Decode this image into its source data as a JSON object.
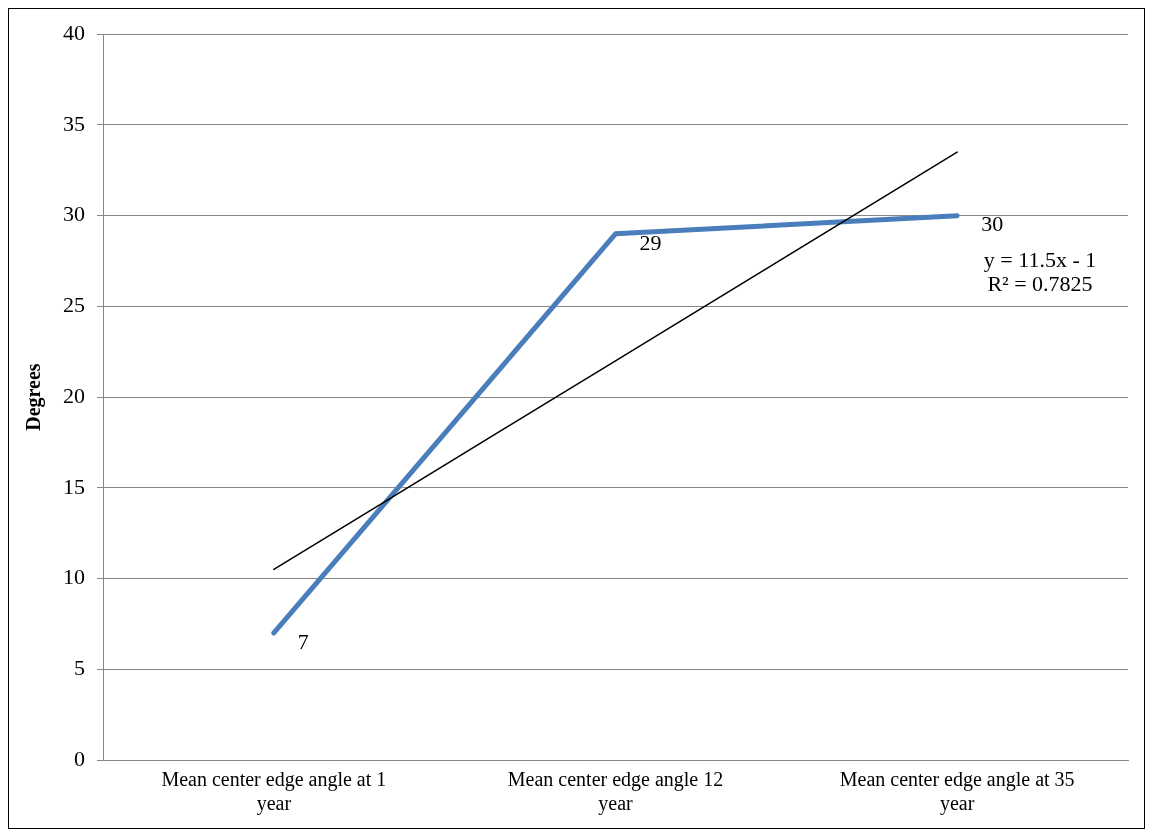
{
  "chart_data": {
    "type": "line",
    "ylabel": "Degrees",
    "categories": [
      "Mean center edge angle at 1 year",
      "Mean center edge angle 12 year",
      "Mean center edge angle at 35 year"
    ],
    "series": [
      {
        "name": null,
        "color": "#4a7ebb",
        "values": [
          7,
          29,
          30
        ],
        "value_labels": [
          "7",
          "29",
          "30"
        ]
      },
      {
        "type": "line",
        "color": "#000000",
        "values": [
          10.5,
          22,
          33.5
        ]
      }
    ],
    "annotations": [
      "y = 11.5x - 1",
      "R² = 0.7825"
    ],
    "ylim": [
      0,
      40
    ],
    "yticks": [
      0,
      5,
      10,
      15,
      20,
      25,
      30,
      35,
      40
    ],
    "grid": "y",
    "legend": false,
    "marker": "none",
    "line_style": "solid"
  }
}
